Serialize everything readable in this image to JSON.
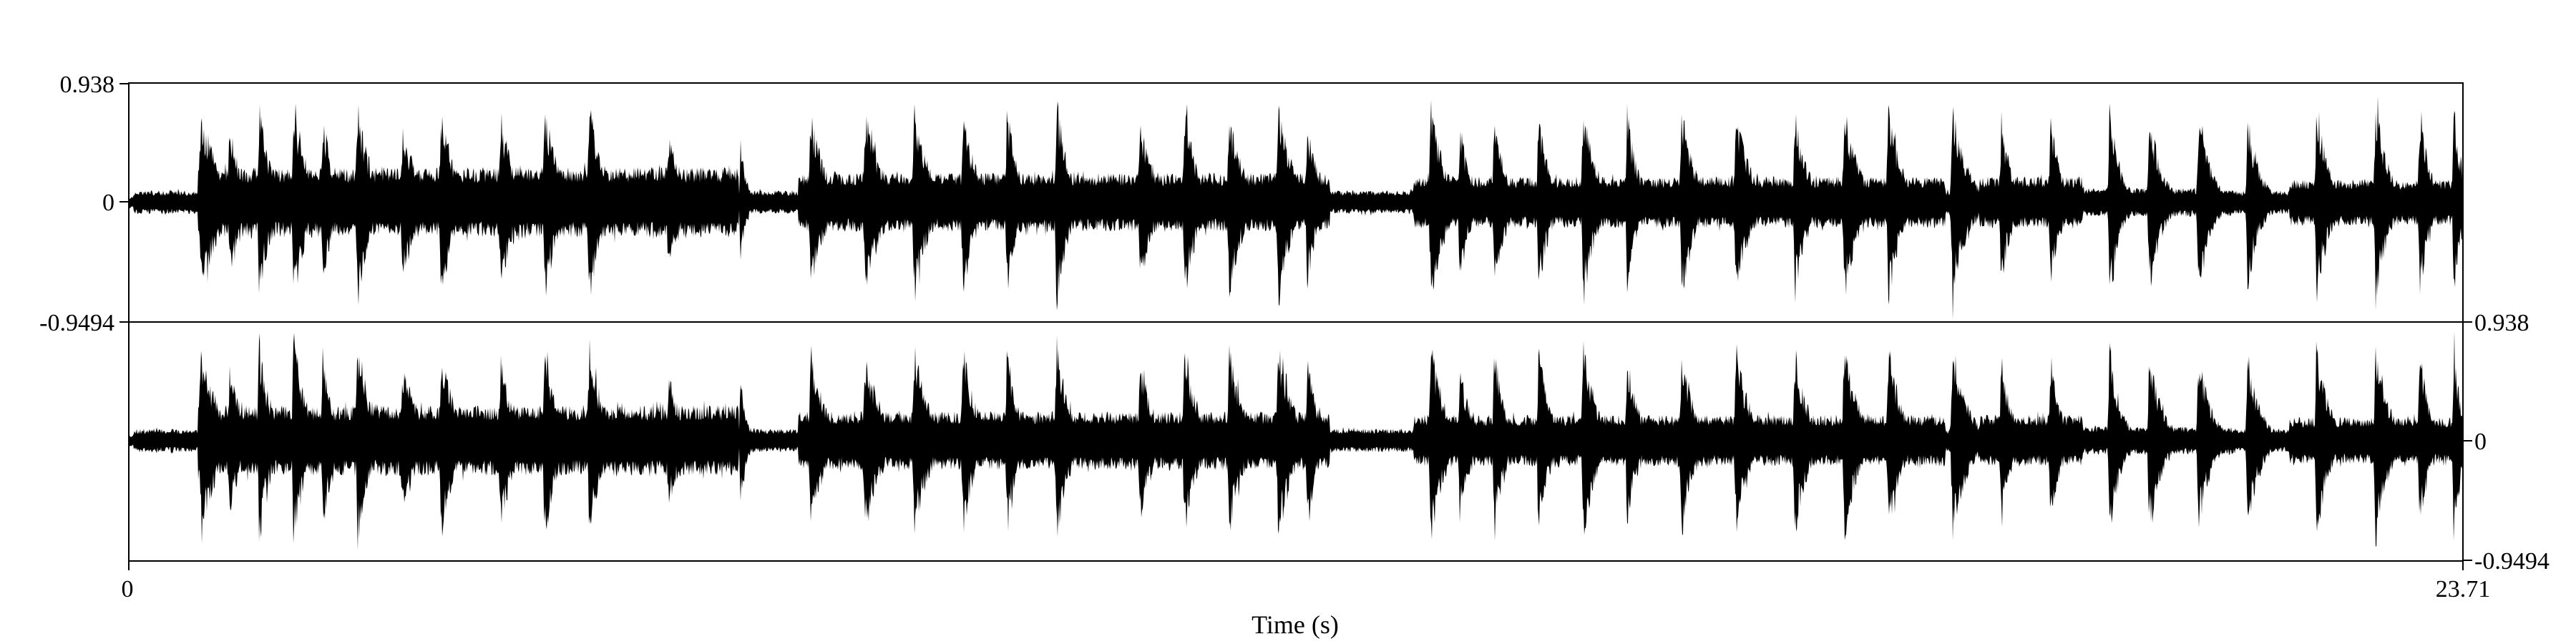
{
  "chart_data": {
    "type": "waveform",
    "channels": 2,
    "xlabel": "Time (s)",
    "xlim": [
      0,
      23.71
    ],
    "x_ticks": [
      "0",
      "23.71"
    ],
    "channel_ylim": [
      -0.9494,
      0.938
    ],
    "channel_1": {
      "y_axis_side": "left",
      "y_ticks": [
        "0.938",
        "0",
        "-0.9494"
      ]
    },
    "channel_2": {
      "y_axis_side": "right",
      "y_ticks": [
        "0.938",
        "0",
        "-0.9494"
      ]
    },
    "bursts_seconds": [
      [
        0.7,
        0.45,
        0.85
      ],
      [
        1.0,
        0.3,
        0.7
      ],
      [
        1.3,
        0.3,
        0.9
      ],
      [
        1.65,
        0.3,
        1.0
      ],
      [
        1.95,
        0.25,
        0.85
      ],
      [
        2.3,
        0.3,
        0.95
      ],
      [
        2.75,
        0.4,
        0.7
      ],
      [
        3.15,
        0.3,
        0.95
      ],
      [
        3.75,
        0.35,
        0.8
      ],
      [
        4.2,
        0.3,
        0.95
      ],
      [
        4.65,
        0.35,
        0.9
      ],
      [
        5.45,
        0.4,
        0.6
      ],
      [
        6.2,
        0.15,
        0.6
      ],
      [
        6.9,
        0.35,
        0.85
      ],
      [
        7.45,
        0.4,
        0.85
      ],
      [
        7.95,
        0.35,
        0.9
      ],
      [
        8.45,
        0.3,
        0.9
      ],
      [
        8.9,
        0.25,
        0.9
      ],
      [
        9.4,
        0.3,
        0.95
      ],
      [
        10.25,
        0.3,
        0.8
      ],
      [
        10.7,
        0.3,
        0.9
      ],
      [
        11.15,
        0.35,
        0.85
      ],
      [
        11.65,
        0.35,
        0.95
      ],
      [
        11.95,
        0.25,
        0.8
      ],
      [
        13.2,
        0.35,
        0.9
      ],
      [
        13.5,
        0.25,
        0.75
      ],
      [
        13.85,
        0.25,
        0.9
      ],
      [
        14.3,
        0.25,
        0.9
      ],
      [
        14.75,
        0.3,
        0.95
      ],
      [
        15.2,
        0.25,
        0.85
      ],
      [
        15.75,
        0.3,
        0.9
      ],
      [
        16.3,
        0.35,
        0.85
      ],
      [
        16.9,
        0.3,
        0.9
      ],
      [
        17.4,
        0.35,
        0.9
      ],
      [
        17.85,
        0.3,
        0.95
      ],
      [
        18.5,
        0.35,
        0.9
      ],
      [
        19.0,
        0.25,
        0.8
      ],
      [
        19.5,
        0.25,
        0.8
      ],
      [
        20.1,
        0.25,
        0.95
      ],
      [
        20.5,
        0.3,
        0.85
      ],
      [
        21.0,
        0.3,
        0.85
      ],
      [
        21.5,
        0.3,
        0.8
      ],
      [
        22.2,
        0.3,
        0.9
      ],
      [
        22.8,
        0.3,
        0.95
      ],
      [
        23.25,
        0.25,
        0.85
      ],
      [
        23.6,
        0.2,
        0.9
      ]
    ],
    "loud_regions_seconds": [
      [
        0.7,
        6.2,
        0.3
      ],
      [
        6.8,
        12.2,
        0.25
      ],
      [
        13.05,
        18.45,
        0.22
      ],
      [
        18.8,
        19.85,
        0.22
      ],
      [
        19.85,
        21.4,
        0.12
      ],
      [
        21.4,
        21.95,
        0.05
      ],
      [
        21.95,
        23.71,
        0.2
      ]
    ]
  }
}
